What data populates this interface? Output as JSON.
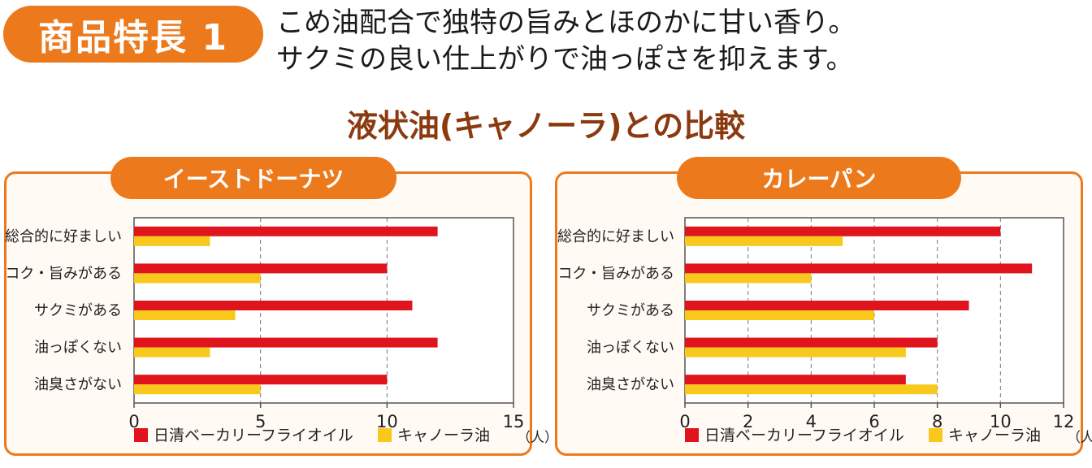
{
  "badge": {
    "label": "商品特長 1"
  },
  "headline": {
    "line1": "こめ油配合で独特の旨みとほのかに甘い香り。",
    "line2": "サクミの良い仕上がりで油っぽさを抑えます。"
  },
  "section_title": "液状油(キャノーラ)との比較",
  "colors": {
    "accent": "#ec7a1c",
    "title_brown": "#8b3a10",
    "red_series": "#e0141c",
    "yellow_series": "#f8c81c"
  },
  "chart_data": [
    {
      "type": "bar",
      "orientation": "horizontal",
      "title": "イーストドーナツ",
      "categories": [
        "総合的に好ましい",
        "コク・旨みがある",
        "サクミがある",
        "油っぽくない",
        "油臭さがない"
      ],
      "series": [
        {
          "name": "日清ベーカリーフライオイル",
          "values": [
            12,
            10,
            11,
            12,
            10
          ]
        },
        {
          "name": "キャノーラ油",
          "values": [
            3,
            5,
            4,
            3,
            5
          ]
        }
      ],
      "xlim": [
        0,
        15
      ],
      "xticks": [
        "0",
        "5",
        "10",
        "15"
      ],
      "unit": "（人）",
      "grid": true,
      "legend": "bottom"
    },
    {
      "type": "bar",
      "orientation": "horizontal",
      "title": "カレーパン",
      "categories": [
        "総合的に好ましい",
        "コク・旨みがある",
        "サクミがある",
        "油っぽくない",
        "油臭さがない"
      ],
      "series": [
        {
          "name": "日清ベーカリーフライオイル",
          "values": [
            10,
            11,
            9,
            8,
            7
          ]
        },
        {
          "name": "キャノーラ油",
          "values": [
            5,
            4,
            6,
            7,
            8
          ]
        }
      ],
      "xlim": [
        0,
        12
      ],
      "xticks": [
        "0",
        "2",
        "4",
        "6",
        "8",
        "10",
        "12"
      ],
      "unit": "（人）",
      "grid": true,
      "legend": "bottom"
    }
  ]
}
